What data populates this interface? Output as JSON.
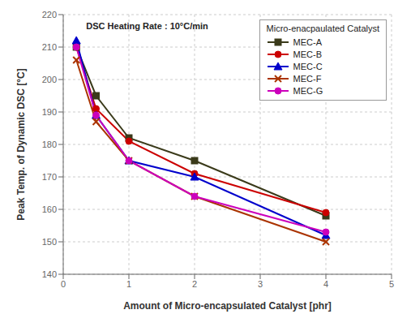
{
  "chart_data": {
    "type": "line",
    "xlabel": "Amount of Micro-encapsulated Catalyst [phr]",
    "ylabel": "Peak Temp. of Dynamic DSC [°C]",
    "annotations": [
      "DSC Heating Rate : 10°C/min"
    ],
    "legend_title": "Micro-enacpaulated Catalyst",
    "x": [
      0.2,
      0.5,
      1.0,
      2.0,
      4.0
    ],
    "series": [
      {
        "name": "MEC-A",
        "color": "#3a3a1a",
        "marker": "square",
        "line_style": "solid",
        "values": [
          210,
          195,
          182,
          175,
          158
        ]
      },
      {
        "name": "MEC-B",
        "color": "#cc0000",
        "marker": "circle",
        "line_style": "solid",
        "values": [
          210,
          191,
          181,
          171,
          159
        ]
      },
      {
        "name": "MEC-C",
        "color": "#0000cc",
        "marker": "triangle",
        "line_style": "solid",
        "values": [
          212,
          189,
          175,
          170,
          152
        ]
      },
      {
        "name": "MEC-F",
        "color": "#aa3300",
        "marker": "x",
        "line_style": "solid",
        "values": [
          206,
          187,
          175,
          164,
          150
        ]
      },
      {
        "name": "MEC-G",
        "color": "#cc00bb",
        "marker": "circle",
        "line_style": "solid",
        "values": [
          210,
          189,
          175,
          164,
          153
        ]
      }
    ],
    "xlim": [
      0,
      5
    ],
    "xticks": [
      0,
      1,
      2,
      3,
      4,
      5
    ],
    "ylim": [
      140,
      220
    ],
    "yticks": [
      140,
      150,
      160,
      170,
      180,
      190,
      200,
      210,
      220
    ],
    "grid": true,
    "legend": "upper right"
  }
}
